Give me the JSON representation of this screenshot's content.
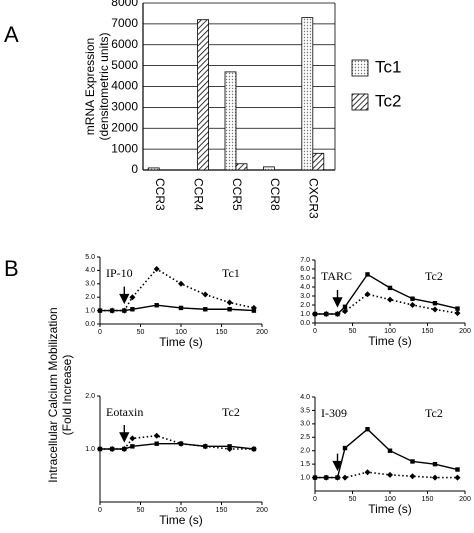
{
  "panels": {
    "a": "A",
    "b": "B"
  },
  "y_label_b": [
    "Intracellular Calcium Mobilization",
    "(Fold Increase)"
  ],
  "chart_data": [
    {
      "type": "bar",
      "y_label": [
        "mRNA Expression",
        "(densitometric units)"
      ],
      "categories": [
        "CCR3",
        "CCR4",
        "CCR5",
        "CCR8",
        "CXCR3"
      ],
      "series": [
        {
          "name": "Tc1",
          "color": "#cccccc",
          "pattern": "dots",
          "values": [
            100,
            0,
            4700,
            150,
            7300
          ]
        },
        {
          "name": "Tc2",
          "color": "#000000",
          "pattern": "hatch",
          "values": [
            0,
            7200,
            300,
            0,
            800
          ]
        }
      ],
      "ylim": [
        0,
        8000
      ],
      "yticks": [
        0,
        1000,
        2000,
        3000,
        4000,
        5000,
        6000,
        7000,
        8000
      ],
      "grid": true
    },
    {
      "type": "line",
      "annotations": [
        "IP-10",
        "Tc1"
      ],
      "x_label": "Time (s)",
      "x": [
        0,
        15,
        30,
        40,
        70,
        100,
        130,
        160,
        190
      ],
      "marker_x": 30,
      "series": [
        {
          "color": "#000000",
          "style": "dotted",
          "marker": "diamond",
          "values": [
            1.0,
            1.0,
            1.0,
            2.0,
            4.1,
            3.0,
            2.2,
            1.6,
            1.2
          ]
        },
        {
          "color": "#000000",
          "style": "solid",
          "marker": "square",
          "values": [
            1.0,
            1.0,
            1.0,
            1.1,
            1.4,
            1.2,
            1.1,
            1.1,
            1.0
          ]
        }
      ],
      "xlim": [
        0,
        200
      ],
      "xticks": [
        0,
        50,
        100,
        150,
        200
      ],
      "ylim": [
        0,
        5
      ],
      "yticks": [
        {
          "value": 0,
          "label": "0.0"
        },
        {
          "value": 1,
          "label": "1.0"
        },
        {
          "value": 2,
          "label": "2.0"
        },
        {
          "value": 3,
          "label": "3.0"
        },
        {
          "value": 4,
          "label": "4.0"
        },
        {
          "value": 5,
          "label": "5.0"
        }
      ]
    },
    {
      "type": "line",
      "annotations": [
        "TARC",
        "Tc2"
      ],
      "x_label": "Time (s)",
      "x": [
        0,
        15,
        30,
        40,
        70,
        100,
        130,
        160,
        190
      ],
      "marker_x": 30,
      "series": [
        {
          "color": "#000000",
          "style": "solid",
          "marker": "square",
          "values": [
            1.0,
            1.0,
            1.0,
            1.8,
            5.4,
            3.9,
            2.7,
            2.2,
            1.6
          ]
        },
        {
          "color": "#000000",
          "style": "dotted",
          "marker": "diamond",
          "values": [
            1.0,
            1.0,
            1.0,
            1.3,
            3.2,
            2.6,
            2.0,
            1.5,
            1.1
          ]
        }
      ],
      "xlim": [
        0,
        200
      ],
      "xticks": [
        0,
        50,
        100,
        150,
        200
      ],
      "ylim": [
        0,
        7
      ],
      "yticks": [
        {
          "value": 0,
          "label": "0.0"
        },
        {
          "value": 1,
          "label": "1.0"
        },
        {
          "value": 2,
          "label": "2.0"
        },
        {
          "value": 3,
          "label": "3.0"
        },
        {
          "value": 4,
          "label": "4.0"
        },
        {
          "value": 5,
          "label": "5.0"
        },
        {
          "value": 6,
          "label": "6.0"
        },
        {
          "value": 7,
          "label": "7.0"
        }
      ]
    },
    {
      "type": "line",
      "annotations": [
        "Eotaxin",
        "Tc2"
      ],
      "x_label": "Time (s)",
      "x": [
        0,
        15,
        30,
        40,
        70,
        100,
        130,
        160,
        190
      ],
      "marker_x": 30,
      "series": [
        {
          "color": "#000000",
          "style": "dotted",
          "marker": "diamond",
          "values": [
            1.0,
            1.0,
            1.0,
            1.2,
            1.25,
            1.1,
            1.05,
            1.0,
            1.0
          ]
        },
        {
          "color": "#000000",
          "style": "solid",
          "marker": "square",
          "values": [
            1.0,
            1.0,
            1.0,
            1.05,
            1.1,
            1.1,
            1.05,
            1.05,
            1.0
          ]
        }
      ],
      "xlim": [
        0,
        200
      ],
      "xticks": [
        0,
        50,
        100,
        150,
        200
      ],
      "ylim": [
        0,
        2
      ],
      "yticks": [
        {
          "value": 1,
          "label": "1.0"
        },
        {
          "value": 2,
          "label": "2.0"
        }
      ]
    },
    {
      "type": "line",
      "annotations": [
        "I-309",
        "Tc2"
      ],
      "x_label": "Time (s)",
      "x": [
        0,
        15,
        30,
        40,
        70,
        100,
        130,
        160,
        190
      ],
      "marker_x": 30,
      "series": [
        {
          "color": "#000000",
          "style": "solid",
          "marker": "square",
          "values": [
            1.0,
            1.0,
            1.0,
            2.1,
            2.8,
            2.0,
            1.6,
            1.5,
            1.3
          ]
        },
        {
          "color": "#000000",
          "style": "dotted",
          "marker": "diamond",
          "values": [
            1.0,
            1.0,
            1.0,
            1.0,
            1.2,
            1.1,
            1.05,
            1.0,
            1.0
          ]
        }
      ],
      "xlim": [
        0,
        200
      ],
      "xticks": [
        0,
        50,
        100,
        150,
        200
      ],
      "ylim": [
        0.5,
        4
      ],
      "yticks": [
        {
          "value": 1,
          "label": "1.0"
        },
        {
          "value": 1.5,
          "label": "1.5"
        },
        {
          "value": 2,
          "label": "2.0"
        },
        {
          "value": 2.5,
          "label": "2.5"
        },
        {
          "value": 3,
          "label": "3.0"
        },
        {
          "value": 3.5,
          "label": "3.5"
        },
        {
          "value": 4,
          "label": "4.0"
        }
      ]
    }
  ]
}
